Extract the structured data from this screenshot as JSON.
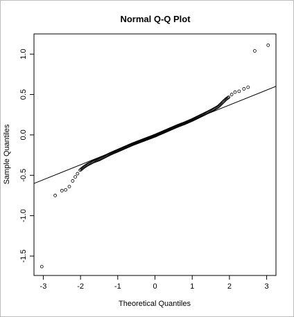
{
  "chart_data": {
    "type": "scatter",
    "title": "Normal Q-Q Plot",
    "xlabel": "Theoretical Quantiles",
    "ylabel": "Sample Quantiles",
    "xlim": [
      -3.25,
      3.25
    ],
    "ylim": [
      -1.74,
      1.25
    ],
    "xticks": [
      -3,
      -2,
      -1,
      0,
      1,
      2,
      3
    ],
    "yticks": [
      -1.5,
      -1.0,
      -0.5,
      0.0,
      0.5,
      1.0
    ],
    "xtick_labels": [
      "-3",
      "-2",
      "-1",
      "0",
      "1",
      "2",
      "3"
    ],
    "ytick_labels": [
      "-1.5",
      "-1.0",
      "-0.5",
      "0.0",
      "0.5",
      "1.0"
    ],
    "grid": false,
    "reference_line": {
      "intercept": 0.0,
      "slope": 0.185
    },
    "outliers": [
      {
        "x": -3.04,
        "y": -1.63
      },
      {
        "x": -2.68,
        "y": -0.75
      },
      {
        "x": -2.5,
        "y": -0.69
      },
      {
        "x": -2.4,
        "y": -0.68
      },
      {
        "x": -2.3,
        "y": -0.64
      },
      {
        "x": -2.21,
        "y": -0.57
      },
      {
        "x": -2.14,
        "y": -0.52
      },
      {
        "x": -2.08,
        "y": -0.48
      },
      {
        "x": 2.06,
        "y": 0.5
      },
      {
        "x": 2.15,
        "y": 0.53
      },
      {
        "x": 2.26,
        "y": 0.54
      },
      {
        "x": 2.39,
        "y": 0.57
      },
      {
        "x": 2.5,
        "y": 0.59
      },
      {
        "x": 2.68,
        "y": 1.04
      },
      {
        "x": 3.04,
        "y": 1.11
      }
    ],
    "body_curve": [
      [
        -2.02,
        -0.44
      ],
      [
        -1.9,
        -0.395
      ],
      [
        -1.8,
        -0.365
      ],
      [
        -1.65,
        -0.33
      ],
      [
        -1.5,
        -0.305
      ],
      [
        -1.35,
        -0.27
      ],
      [
        -1.2,
        -0.235
      ],
      [
        -1.0,
        -0.195
      ],
      [
        -0.8,
        -0.155
      ],
      [
        -0.6,
        -0.115
      ],
      [
        -0.4,
        -0.08
      ],
      [
        -0.2,
        -0.045
      ],
      [
        0.0,
        -0.01
      ],
      [
        0.2,
        0.03
      ],
      [
        0.4,
        0.07
      ],
      [
        0.6,
        0.11
      ],
      [
        0.8,
        0.145
      ],
      [
        1.0,
        0.185
      ],
      [
        1.2,
        0.23
      ],
      [
        1.4,
        0.275
      ],
      [
        1.55,
        0.31
      ],
      [
        1.7,
        0.35
      ],
      [
        1.8,
        0.395
      ],
      [
        1.9,
        0.44
      ],
      [
        1.99,
        0.47
      ]
    ],
    "body_point_count": 240
  }
}
